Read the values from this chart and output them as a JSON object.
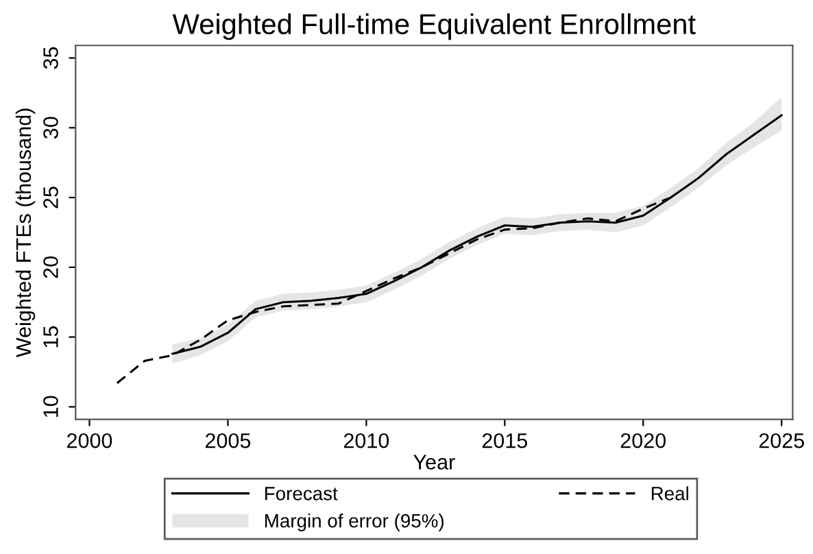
{
  "chart_data": {
    "type": "line",
    "title": "Weighted Full-time Equivalent Enrollment",
    "xlabel": "Year",
    "ylabel": "Weighted FTEs (thousand)",
    "xlim": [
      1999.5,
      2025.4
    ],
    "xticks": [
      2000,
      2005,
      2010,
      2015,
      2020,
      2025
    ],
    "ylim": [
      9.1,
      35.9
    ],
    "yticks": [
      10,
      15,
      20,
      25,
      30,
      35
    ],
    "grid": false,
    "legend": "bottom",
    "series": [
      {
        "name": "Forecast",
        "type": "line",
        "color": "#000000",
        "line_style": "solid",
        "x": [
          2003,
          2004,
          2005,
          2006,
          2007,
          2008,
          2009,
          2010,
          2011,
          2012,
          2013,
          2014,
          2015,
          2016,
          2017,
          2018,
          2019,
          2020,
          2021,
          2022,
          2023,
          2024,
          2025
        ],
        "values": [
          13.8,
          14.3,
          15.3,
          17.0,
          17.5,
          17.6,
          17.8,
          18.1,
          19.0,
          20.0,
          21.2,
          22.2,
          23.0,
          22.9,
          23.2,
          23.3,
          23.2,
          23.7,
          25.0,
          26.4,
          28.1,
          29.5,
          30.9
        ],
        "lower": [
          13.1,
          13.7,
          14.7,
          16.4,
          16.9,
          17.0,
          17.2,
          17.5,
          18.4,
          19.4,
          20.6,
          21.6,
          22.4,
          22.3,
          22.6,
          22.7,
          22.5,
          23.0,
          24.3,
          25.7,
          27.3,
          28.6,
          29.8
        ],
        "upper": [
          14.5,
          14.9,
          15.9,
          17.6,
          18.1,
          18.2,
          18.4,
          18.7,
          19.6,
          20.6,
          21.8,
          22.8,
          23.6,
          23.5,
          23.8,
          23.9,
          23.9,
          24.4,
          25.7,
          27.1,
          28.9,
          30.4,
          32.2
        ]
      },
      {
        "name": "Real",
        "type": "line",
        "color": "#000000",
        "line_style": "dashed",
        "x": [
          2001,
          2002,
          2003,
          2004,
          2005,
          2006,
          2007,
          2008,
          2009,
          2010,
          2011,
          2012,
          2013,
          2014,
          2015,
          2016,
          2017,
          2018,
          2019,
          2020,
          2021
        ],
        "values": [
          11.7,
          13.3,
          13.7,
          14.8,
          16.2,
          16.8,
          17.2,
          17.3,
          17.4,
          18.3,
          19.2,
          20.0,
          21.0,
          22.0,
          22.7,
          22.8,
          23.2,
          23.5,
          23.3,
          24.2,
          25.0
        ]
      }
    ],
    "annotations": [
      "Margin of error (95%)"
    ]
  }
}
